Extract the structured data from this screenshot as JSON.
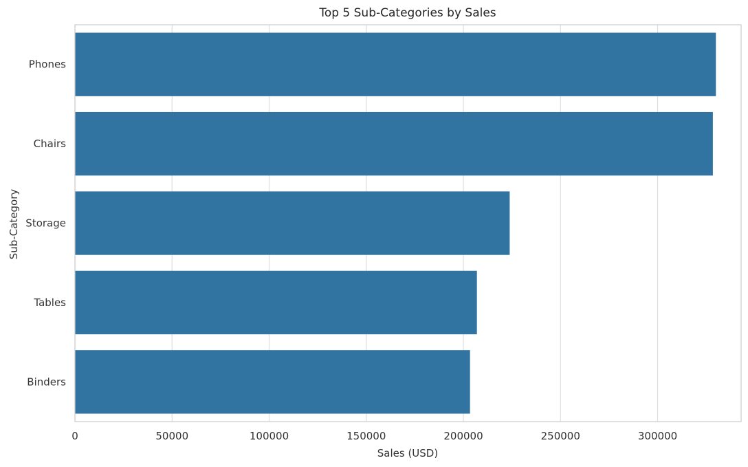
{
  "chart_data": {
    "type": "bar",
    "orientation": "horizontal",
    "title": "Top 5 Sub-Categories by Sales",
    "xlabel": "Sales (USD)",
    "ylabel": "Sub-Category",
    "categories": [
      "Phones",
      "Chairs",
      "Storage",
      "Tables",
      "Binders"
    ],
    "values": [
      330007,
      328449,
      223844,
      206966,
      203413
    ],
    "xlim": [
      0,
      343000
    ],
    "xticks": [
      0,
      50000,
      100000,
      150000,
      200000,
      250000,
      300000
    ],
    "grid": true,
    "legend": "none",
    "colors": {
      "bar": "#3274a1",
      "grid": "#dddddd",
      "axis_text": "#333333",
      "title": "#262626",
      "spine": "#cccccc"
    }
  }
}
